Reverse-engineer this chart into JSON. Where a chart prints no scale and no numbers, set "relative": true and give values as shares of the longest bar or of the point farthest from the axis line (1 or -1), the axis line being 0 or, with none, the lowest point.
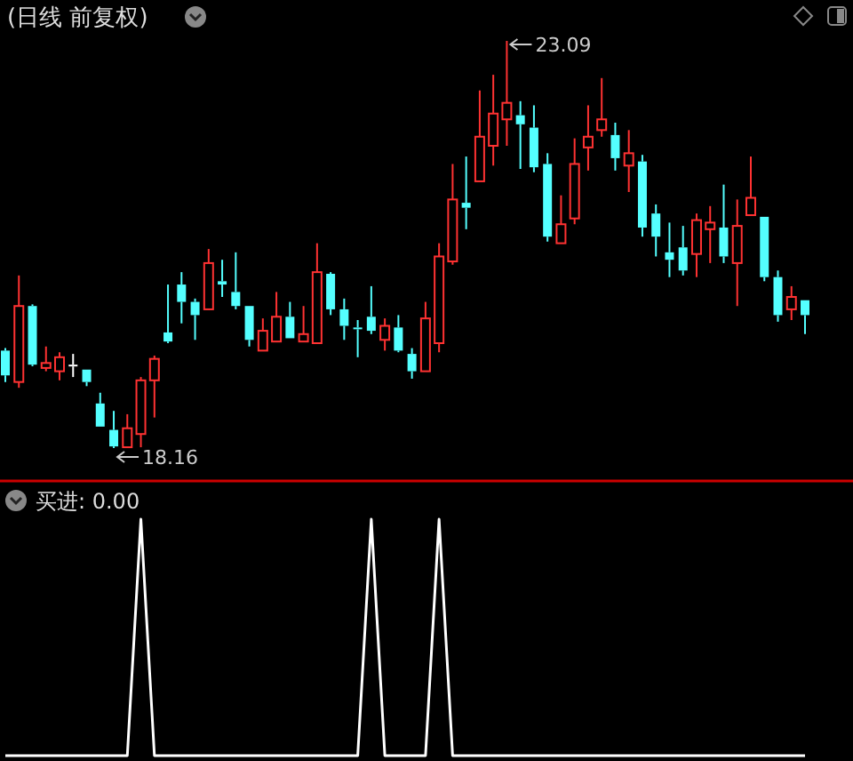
{
  "chart_data": [
    {
      "type": "candlestick",
      "title": "(日线 前复权)",
      "categories": [
        null,
        null,
        null,
        null,
        null,
        null,
        null,
        null,
        null,
        null,
        null,
        null,
        null,
        null,
        null,
        null,
        null,
        null,
        null,
        null,
        null,
        null,
        null,
        null,
        null,
        null,
        null,
        null,
        null,
        null,
        null,
        null,
        null,
        null,
        null,
        null,
        null,
        null,
        null,
        null,
        null,
        null,
        null,
        null,
        null,
        null,
        null,
        null,
        null,
        null,
        null,
        null,
        null,
        null,
        null,
        null,
        null,
        null,
        null,
        null
      ],
      "ohlc": [
        [
          19.34,
          19.37,
          18.96,
          19.04
        ],
        [
          18.96,
          20.25,
          18.89,
          19.88
        ],
        [
          19.88,
          19.9,
          19.15,
          19.17
        ],
        [
          19.13,
          19.39,
          19.09,
          19.19
        ],
        [
          19.09,
          19.32,
          18.98,
          19.26
        ],
        [
          19.17,
          19.3,
          19.02,
          19.17
        ],
        [
          19.11,
          19.11,
          18.91,
          18.96
        ],
        [
          18.7,
          18.83,
          18.42,
          18.42
        ],
        [
          18.38,
          18.61,
          18.16,
          18.18
        ],
        [
          18.17,
          18.57,
          18.17,
          18.4
        ],
        [
          18.33,
          19.02,
          18.17,
          18.98
        ],
        [
          18.98,
          19.28,
          18.53,
          19.24
        ],
        [
          19.56,
          20.14,
          19.43,
          19.45
        ],
        [
          20.14,
          20.29,
          19.67,
          19.93
        ],
        [
          19.93,
          19.97,
          19.47,
          19.77
        ],
        [
          19.84,
          20.57,
          19.84,
          20.4
        ],
        [
          20.18,
          20.44,
          19.99,
          20.14
        ],
        [
          20.05,
          20.53,
          19.84,
          19.88
        ],
        [
          19.88,
          19.88,
          19.39,
          19.47
        ],
        [
          19.34,
          19.73,
          19.34,
          19.58
        ],
        [
          19.45,
          20.05,
          19.45,
          19.75
        ],
        [
          19.75,
          19.93,
          19.49,
          19.49
        ],
        [
          19.45,
          19.88,
          19.45,
          19.54
        ],
        [
          19.43,
          20.64,
          19.43,
          20.29
        ],
        [
          20.27,
          20.29,
          19.77,
          19.84
        ],
        [
          19.84,
          19.97,
          19.47,
          19.64
        ],
        [
          19.62,
          19.71,
          19.26,
          19.62
        ],
        [
          19.75,
          20.12,
          19.54,
          19.58
        ],
        [
          19.47,
          19.73,
          19.34,
          19.64
        ],
        [
          19.62,
          19.77,
          19.32,
          19.34
        ],
        [
          19.3,
          19.37,
          19.0,
          19.09
        ],
        [
          19.09,
          19.93,
          19.09,
          19.73
        ],
        [
          19.43,
          20.64,
          19.32,
          20.48
        ],
        [
          20.42,
          21.6,
          20.38,
          21.17
        ],
        [
          21.13,
          21.69,
          20.81,
          21.07
        ],
        [
          21.39,
          22.49,
          21.39,
          21.93
        ],
        [
          21.82,
          22.68,
          21.58,
          22.21
        ],
        [
          22.14,
          23.09,
          21.82,
          22.34
        ],
        [
          22.19,
          22.36,
          21.54,
          22.08
        ],
        [
          22.04,
          22.31,
          21.5,
          21.56
        ],
        [
          21.6,
          21.73,
          20.66,
          20.72
        ],
        [
          20.64,
          21.22,
          20.64,
          20.87
        ],
        [
          20.94,
          21.91,
          20.87,
          21.6
        ],
        [
          21.8,
          22.31,
          21.52,
          21.93
        ],
        [
          22.01,
          22.64,
          21.93,
          22.14
        ],
        [
          21.95,
          22.1,
          21.52,
          21.67
        ],
        [
          21.58,
          22.01,
          21.26,
          21.73
        ],
        [
          21.63,
          21.71,
          20.72,
          20.83
        ],
        [
          21.0,
          21.11,
          20.48,
          20.72
        ],
        [
          20.53,
          20.89,
          20.23,
          20.44
        ],
        [
          20.59,
          20.85,
          20.25,
          20.31
        ],
        [
          20.51,
          21.0,
          20.23,
          20.92
        ],
        [
          20.81,
          21.09,
          20.4,
          20.89
        ],
        [
          20.83,
          21.35,
          20.4,
          20.48
        ],
        [
          20.4,
          21.17,
          19.88,
          20.85
        ],
        [
          20.98,
          21.69,
          20.98,
          21.19
        ],
        [
          20.96,
          20.96,
          20.18,
          20.23
        ],
        [
          20.23,
          20.31,
          19.69,
          19.77
        ],
        [
          19.84,
          20.12,
          19.71,
          19.99
        ],
        [
          19.95,
          19.95,
          19.54,
          19.77
        ]
      ],
      "colors": [
        "#54ffff",
        "#ff3232",
        "#54ffff",
        "#ff3232",
        "#ff3232",
        "#ffffff",
        "#54ffff",
        "#54ffff",
        "#54ffff",
        "#ff3232",
        "#ff3232",
        "#ff3232",
        "#54ffff",
        "#54ffff",
        "#54ffff",
        "#ff3232",
        "#54ffff",
        "#54ffff",
        "#54ffff",
        "#ff3232",
        "#ff3232",
        "#54ffff",
        "#ff3232",
        "#ff3232",
        "#54ffff",
        "#54ffff",
        "#54ffff",
        "#54ffff",
        "#ff3232",
        "#54ffff",
        "#54ffff",
        "#ff3232",
        "#ff3232",
        "#ff3232",
        "#54ffff",
        "#ff3232",
        "#ff3232",
        "#ff3232",
        "#54ffff",
        "#54ffff",
        "#54ffff",
        "#ff3232",
        "#ff3232",
        "#ff3232",
        "#ff3232",
        "#54ffff",
        "#ff3232",
        "#54ffff",
        "#54ffff",
        "#54ffff",
        "#54ffff",
        "#ff3232",
        "#ff3232",
        "#54ffff",
        "#ff3232",
        "#ff3232",
        "#54ffff",
        "#54ffff",
        "#ff3232",
        "#54ffff"
      ],
      "annotations": [
        "23.09",
        "18.16"
      ]
    },
    {
      "type": "line",
      "title": "买进: 0.00",
      "relative": true,
      "categories": [
        null,
        null,
        null,
        null,
        null,
        null,
        null,
        null,
        null,
        null,
        null,
        null,
        null,
        null,
        null,
        null,
        null,
        null,
        null,
        null,
        null,
        null,
        null,
        null,
        null,
        null,
        null,
        null,
        null,
        null,
        null,
        null,
        null,
        null,
        null,
        null,
        null,
        null,
        null,
        null,
        null,
        null,
        null,
        null,
        null,
        null,
        null,
        null,
        null,
        null,
        null,
        null,
        null,
        null,
        null,
        null,
        null,
        null,
        null,
        null
      ],
      "series": [
        {
          "color": "#ffffff",
          "values": [
            0,
            0,
            0,
            0,
            0,
            0,
            0,
            0,
            0,
            0,
            1,
            0,
            0,
            0,
            0,
            0,
            0,
            0,
            0,
            0,
            0,
            0,
            0,
            0,
            0,
            0,
            0,
            1,
            0,
            0,
            0,
            0,
            1,
            0,
            0,
            0,
            0,
            0,
            0,
            0,
            0,
            0,
            0,
            0,
            0,
            0,
            0,
            0,
            0,
            0,
            0,
            0,
            0,
            0,
            0,
            0,
            0,
            0,
            0,
            0
          ]
        }
      ]
    }
  ]
}
